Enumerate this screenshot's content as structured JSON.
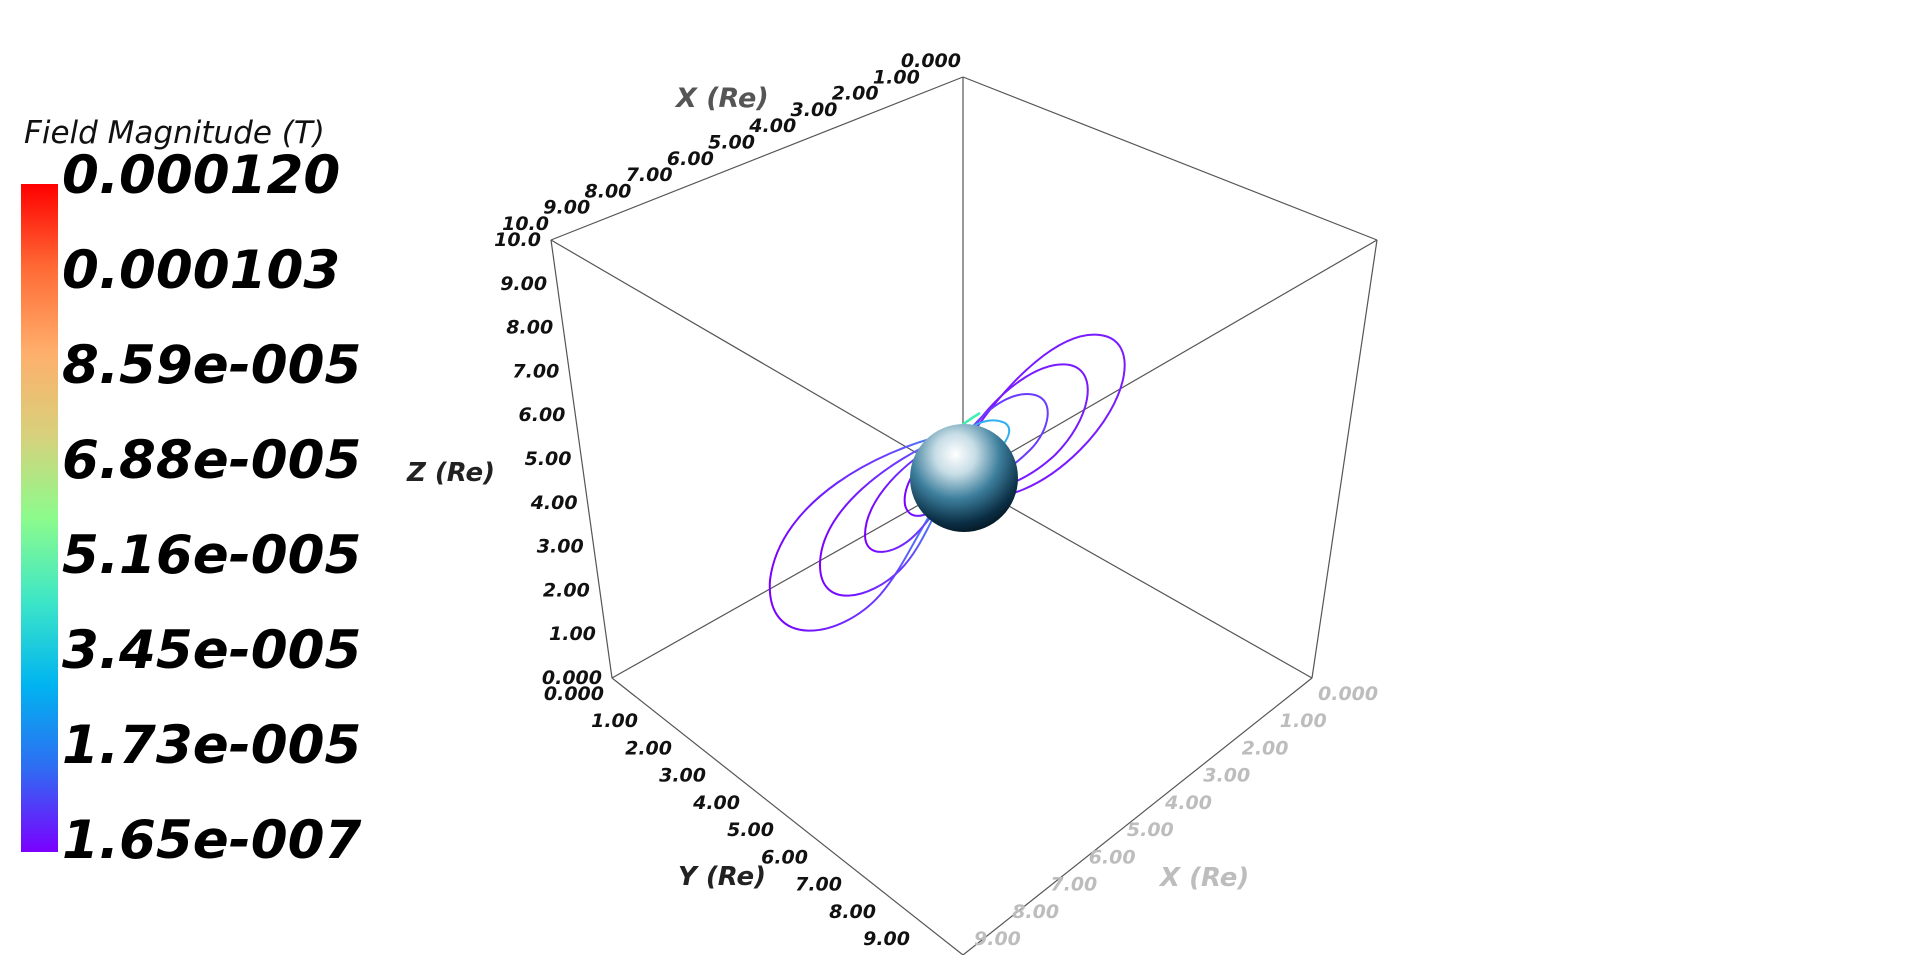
{
  "scene": {
    "background": "#ffffff",
    "box_line_color": "#555555",
    "field_line_color_min": "#7a00ff",
    "field_line_color_max": "#ff0000"
  },
  "legend": {
    "title": "Field Magnitude (T)",
    "labels": [
      "0.000120",
      "0.000103",
      "8.59e-005",
      "6.88e-005",
      "5.16e-005",
      "3.45e-005",
      "1.73e-005",
      "1.65e-007"
    ],
    "colormap": [
      "#7a00ff",
      "#2f6cf2",
      "#00b4f0",
      "#3de6c7",
      "#8cfb8c",
      "#d8d07b",
      "#ffae6b",
      "#ff6a35",
      "#ff0000"
    ]
  },
  "axes": {
    "x_back": {
      "title": "X (Re)",
      "ticks": [
        "0.000",
        "1.00",
        "2.00",
        "3.00",
        "4.00",
        "5.00",
        "6.00",
        "7.00",
        "8.00",
        "9.00",
        "10.0"
      ]
    },
    "z": {
      "title": "Z (Re)",
      "ticks": [
        "0.000",
        "1.00",
        "2.00",
        "3.00",
        "4.00",
        "5.00",
        "6.00",
        "7.00",
        "8.00",
        "9.00",
        "10.0"
      ]
    },
    "y": {
      "title": "Y (Re)",
      "ticks": [
        "0.000",
        "1.00",
        "2.00",
        "3.00",
        "4.00",
        "5.00",
        "6.00",
        "7.00",
        "8.00",
        "9.00"
      ]
    },
    "x_front": {
      "title": "X (Re)",
      "ticks": [
        "0.000",
        "1.00",
        "2.00",
        "3.00",
        "4.00",
        "5.00",
        "6.00",
        "7.00",
        "8.00",
        "9.00"
      ]
    }
  }
}
